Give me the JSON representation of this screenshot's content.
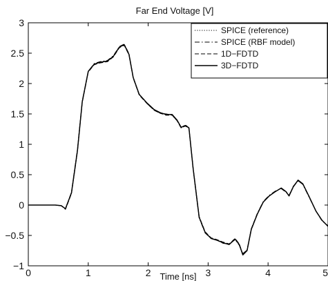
{
  "chart_data": {
    "type": "line",
    "title": "Far End Voltage [V]",
    "xlabel": "Time [ns]",
    "ylabel": "",
    "xlim": [
      0,
      5
    ],
    "ylim": [
      -1,
      3
    ],
    "xticks": [
      "0",
      "1",
      "2",
      "3",
      "4",
      "5"
    ],
    "yticks": [
      "-1",
      "-0.5",
      "0",
      "0.5",
      "1",
      "1.5",
      "2",
      "2.5",
      "3"
    ],
    "grid": false,
    "legend_position": "top-right",
    "series": [
      {
        "name": "SPICE (reference)",
        "style": "dotted",
        "x": [
          0,
          0.45,
          0.55,
          0.62,
          0.72,
          0.82,
          0.9,
          1.0,
          1.1,
          1.2,
          1.32,
          1.42,
          1.52,
          1.6,
          1.68,
          1.75,
          1.85,
          1.98,
          2.1,
          2.2,
          2.3,
          2.4,
          2.48,
          2.55,
          2.62,
          2.68,
          2.75,
          2.85,
          2.95,
          3.05,
          3.15,
          3.25,
          3.35,
          3.45,
          3.52,
          3.58,
          3.65,
          3.72,
          3.82,
          3.92,
          4.02,
          4.12,
          4.22,
          4.3,
          4.35,
          4.42,
          4.5,
          4.58,
          4.68,
          4.8,
          4.9,
          5.0
        ],
        "y": [
          0.0,
          0.0,
          -0.01,
          -0.06,
          0.2,
          0.9,
          1.7,
          2.2,
          2.32,
          2.35,
          2.37,
          2.45,
          2.6,
          2.64,
          2.48,
          2.1,
          1.82,
          1.68,
          1.57,
          1.52,
          1.49,
          1.49,
          1.4,
          1.28,
          1.31,
          1.27,
          0.6,
          -0.2,
          -0.45,
          -0.55,
          -0.58,
          -0.62,
          -0.65,
          -0.56,
          -0.65,
          -0.82,
          -0.75,
          -0.4,
          -0.15,
          0.05,
          0.15,
          0.22,
          0.28,
          0.22,
          0.15,
          0.3,
          0.41,
          0.35,
          0.15,
          -0.1,
          -0.25,
          -0.35
        ]
      },
      {
        "name": "SPICE (RBF model)",
        "style": "dashdot",
        "x": [
          0,
          0.45,
          0.55,
          0.62,
          0.72,
          0.82,
          0.9,
          1.0,
          1.1,
          1.2,
          1.32,
          1.42,
          1.52,
          1.6,
          1.68,
          1.75,
          1.85,
          1.98,
          2.1,
          2.2,
          2.3,
          2.4,
          2.48,
          2.55,
          2.62,
          2.68,
          2.75,
          2.85,
          2.95,
          3.05,
          3.15,
          3.25,
          3.35,
          3.45,
          3.52,
          3.58,
          3.65,
          3.72,
          3.82,
          3.92,
          4.02,
          4.12,
          4.22,
          4.3,
          4.35,
          4.42,
          4.5,
          4.58,
          4.68,
          4.8,
          4.9,
          5.0
        ],
        "y": [
          0.0,
          0.0,
          -0.01,
          -0.06,
          0.21,
          0.92,
          1.71,
          2.2,
          2.33,
          2.36,
          2.38,
          2.46,
          2.61,
          2.65,
          2.49,
          2.1,
          1.82,
          1.67,
          1.56,
          1.51,
          1.5,
          1.48,
          1.39,
          1.27,
          1.32,
          1.27,
          0.59,
          -0.21,
          -0.46,
          -0.55,
          -0.58,
          -0.63,
          -0.64,
          -0.57,
          -0.66,
          -0.8,
          -0.74,
          -0.41,
          -0.14,
          0.06,
          0.16,
          0.23,
          0.27,
          0.21,
          0.16,
          0.31,
          0.4,
          0.34,
          0.14,
          -0.1,
          -0.26,
          -0.34
        ]
      },
      {
        "name": "1D−FDTD",
        "style": "dashed",
        "x": [
          0,
          0.45,
          0.55,
          0.62,
          0.72,
          0.82,
          0.9,
          1.0,
          1.1,
          1.2,
          1.32,
          1.42,
          1.52,
          1.6,
          1.68,
          1.75,
          1.85,
          1.98,
          2.1,
          2.2,
          2.3,
          2.4,
          2.48,
          2.55,
          2.62,
          2.68,
          2.75,
          2.85,
          2.95,
          3.05,
          3.15,
          3.25,
          3.35,
          3.45,
          3.52,
          3.58,
          3.65,
          3.72,
          3.82,
          3.92,
          4.02,
          4.12,
          4.22,
          4.3,
          4.35,
          4.42,
          4.5,
          4.58,
          4.68,
          4.8,
          4.9,
          5.0
        ],
        "y": [
          0.0,
          0.0,
          -0.01,
          -0.07,
          0.19,
          0.89,
          1.69,
          2.19,
          2.31,
          2.34,
          2.36,
          2.44,
          2.59,
          2.63,
          2.47,
          2.09,
          1.81,
          1.67,
          1.56,
          1.51,
          1.48,
          1.48,
          1.39,
          1.27,
          1.3,
          1.26,
          0.61,
          -0.19,
          -0.44,
          -0.54,
          -0.57,
          -0.61,
          -0.64,
          -0.55,
          -0.64,
          -0.81,
          -0.74,
          -0.39,
          -0.14,
          0.05,
          0.15,
          0.22,
          0.28,
          0.22,
          0.15,
          0.3,
          0.4,
          0.35,
          0.15,
          -0.1,
          -0.25,
          -0.35
        ]
      },
      {
        "name": "3D−FDTD",
        "style": "solid",
        "x": [
          0,
          0.45,
          0.55,
          0.62,
          0.72,
          0.82,
          0.9,
          1.0,
          1.1,
          1.2,
          1.32,
          1.42,
          1.52,
          1.6,
          1.68,
          1.75,
          1.85,
          1.98,
          2.1,
          2.2,
          2.3,
          2.4,
          2.48,
          2.55,
          2.62,
          2.68,
          2.75,
          2.85,
          2.95,
          3.05,
          3.15,
          3.25,
          3.35,
          3.45,
          3.52,
          3.58,
          3.65,
          3.72,
          3.82,
          3.92,
          4.02,
          4.12,
          4.22,
          4.3,
          4.35,
          4.42,
          4.5,
          4.58,
          4.68,
          4.8,
          4.9,
          5.0
        ],
        "y": [
          0.0,
          0.0,
          -0.01,
          -0.06,
          0.2,
          0.9,
          1.7,
          2.2,
          2.32,
          2.35,
          2.37,
          2.45,
          2.6,
          2.64,
          2.48,
          2.1,
          1.82,
          1.68,
          1.57,
          1.52,
          1.49,
          1.49,
          1.4,
          1.28,
          1.31,
          1.27,
          0.6,
          -0.2,
          -0.45,
          -0.55,
          -0.58,
          -0.62,
          -0.65,
          -0.56,
          -0.65,
          -0.82,
          -0.75,
          -0.4,
          -0.15,
          0.05,
          0.15,
          0.22,
          0.28,
          0.22,
          0.15,
          0.3,
          0.41,
          0.35,
          0.15,
          -0.1,
          -0.25,
          -0.35
        ]
      }
    ]
  }
}
